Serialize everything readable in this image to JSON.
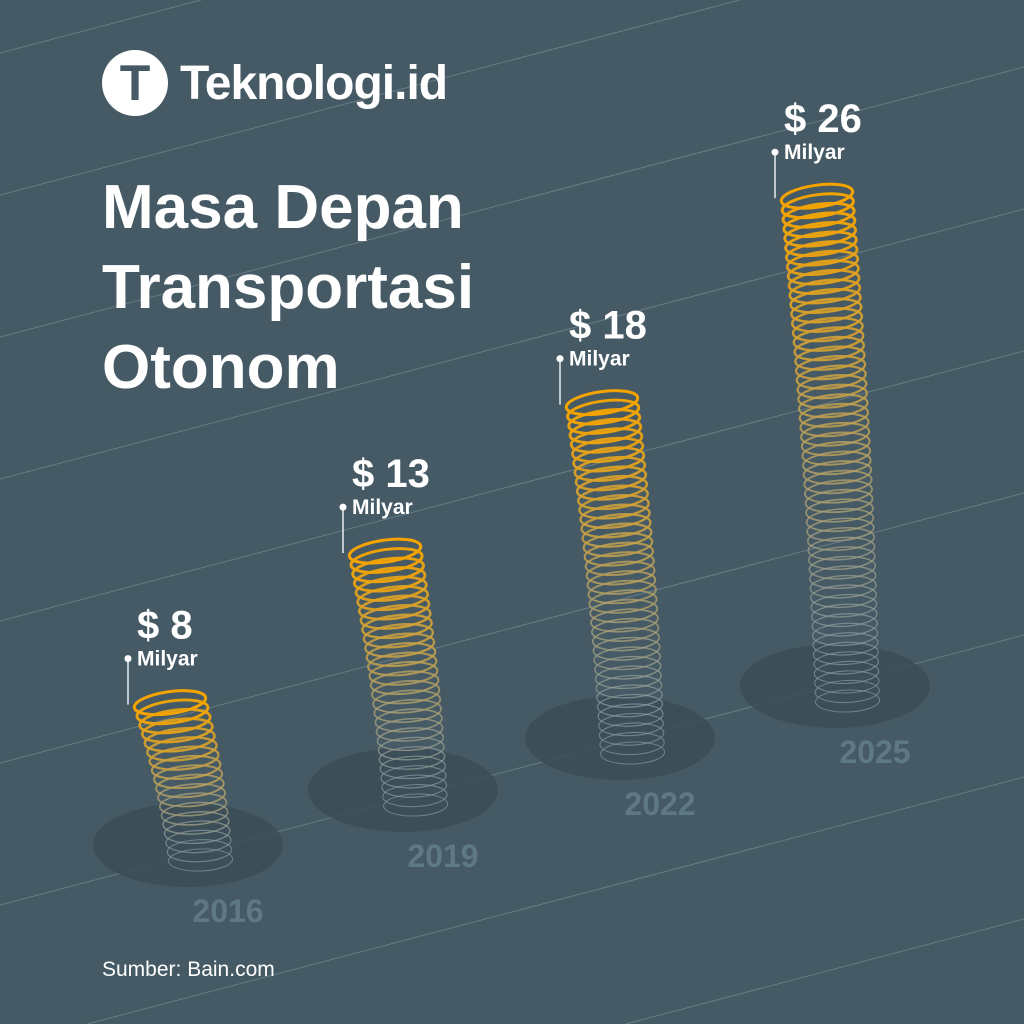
{
  "brand": {
    "logo_letter": "T",
    "name": "Teknologi.id"
  },
  "title_lines": [
    "Masa Depan",
    "Transportasi",
    "Otonom"
  ],
  "source": "Sumber: Bain.com",
  "colors": {
    "background": "#455a64",
    "spiral_top": "#f5a300",
    "spiral_bottom": "#8c9ea4",
    "year": "#5f7885"
  },
  "chart_data": {
    "type": "bar",
    "title": "Masa Depan Transportasi Otonom",
    "xlabel": "",
    "ylabel": "",
    "unit": "Milyar",
    "categories": [
      "2016",
      "2019",
      "2022",
      "2025"
    ],
    "values": [
      8,
      13,
      18,
      26
    ],
    "value_labels": [
      "$ 8",
      "$ 13",
      "$ 18",
      "$ 26"
    ]
  }
}
